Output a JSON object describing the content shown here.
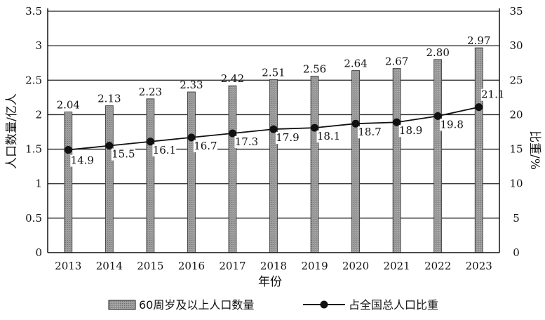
{
  "chart_data": {
    "type": "bar+line",
    "categories": [
      "2013",
      "2014",
      "2015",
      "2016",
      "2017",
      "2018",
      "2019",
      "2020",
      "2021",
      "2022",
      "2023"
    ],
    "xlabel": "年份",
    "series": [
      {
        "name": "60周岁及以上人口数量",
        "type": "bar",
        "axis": "left",
        "values": [
          2.04,
          2.13,
          2.23,
          2.33,
          2.42,
          2.51,
          2.56,
          2.64,
          2.67,
          2.8,
          2.97
        ],
        "labels": [
          "2.04",
          "2.13",
          "2.23",
          "2.33",
          "2.42",
          "2.51",
          "2.56",
          "2.64",
          "2.67",
          "2.80",
          "2.97"
        ],
        "color": "#8f8f8f"
      },
      {
        "name": "占全国总人口比重",
        "type": "line",
        "axis": "right",
        "values": [
          14.9,
          15.5,
          16.1,
          16.7,
          17.3,
          17.9,
          18.1,
          18.7,
          18.9,
          19.8,
          21.1
        ],
        "labels": [
          "14.9",
          "15.5",
          "16.1",
          "16.7",
          "17.3",
          "17.9",
          "18.1",
          "18.7",
          "18.9",
          "19.8",
          "21.1"
        ],
        "color": "#111111"
      }
    ],
    "y_left": {
      "label": "人口数量/亿人",
      "ylim": [
        0,
        3.5
      ],
      "ticks": [
        "0",
        "0.5",
        "1",
        "1.5",
        "2",
        "2.5",
        "3",
        "3.5"
      ]
    },
    "y_right": {
      "label": "比重/%",
      "ylim": [
        0,
        35
      ],
      "ticks": [
        "0",
        "5",
        "10",
        "15",
        "20",
        "25",
        "30",
        "35"
      ]
    },
    "grid": true,
    "legend_position": "bottom"
  }
}
